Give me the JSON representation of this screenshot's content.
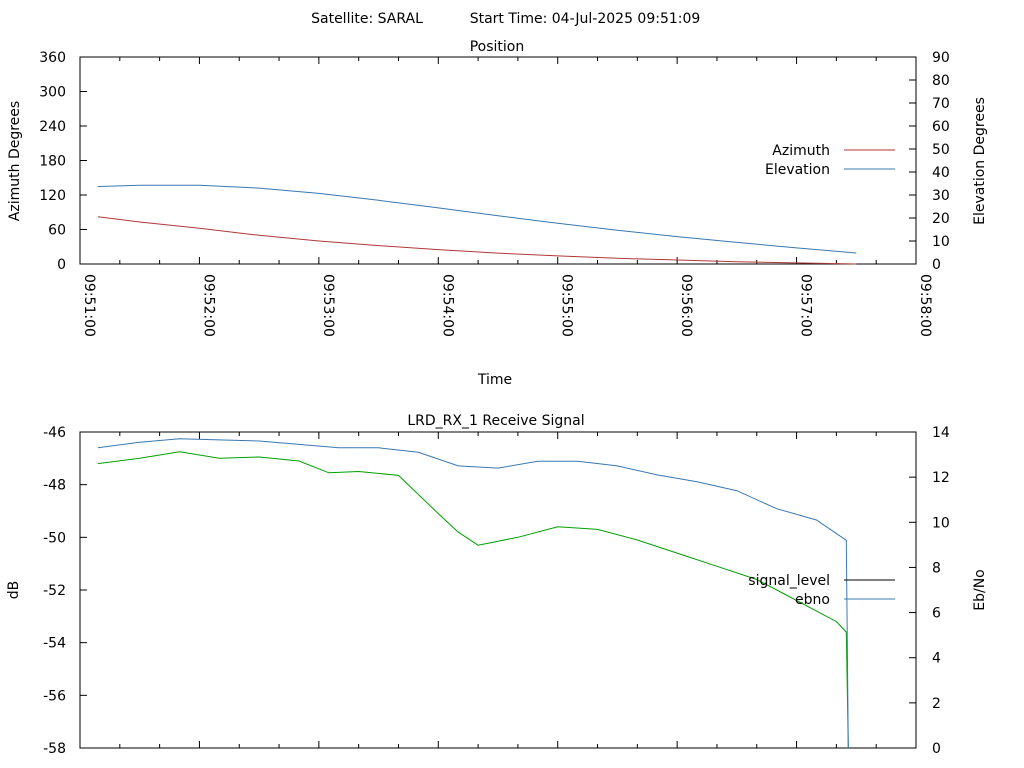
{
  "header": {
    "satellite_text": "Satellite: SARAL",
    "start_time_text": "Start Time: 04-Jul-2025 09:51:09"
  },
  "chart_data": [
    {
      "type": "line",
      "title": "Position",
      "xlabel": "Time",
      "ylabel_left": "Azimuth Degrees",
      "ylabel_right": "Elevation Degrees",
      "x_ticks": [
        "09:51:00",
        "09:52:00",
        "09:53:00",
        "09:54:00",
        "09:55:00",
        "09:56:00",
        "09:57:00",
        "09:58:00"
      ],
      "xlim": [
        "09:51:00",
        "09:58:00"
      ],
      "ylim_left": [
        0,
        360
      ],
      "ylim_right": [
        0,
        90
      ],
      "y_ticks_left": [
        0,
        60,
        120,
        180,
        240,
        300,
        360
      ],
      "y_ticks_right": [
        0,
        10,
        20,
        30,
        40,
        50,
        60,
        70,
        80,
        90
      ],
      "legend": "right",
      "series": [
        {
          "name": "Azimuth",
          "axis": "left",
          "color": "#b03838",
          "x": [
            "09:51:09",
            "09:51:30",
            "09:52:00",
            "09:52:30",
            "09:53:00",
            "09:53:30",
            "09:54:00",
            "09:54:30",
            "09:55:00",
            "09:55:30",
            "09:56:00",
            "09:56:30",
            "09:57:00",
            "09:57:30"
          ],
          "y": [
            82,
            73,
            62,
            50,
            40,
            32,
            25,
            19,
            14,
            10,
            7,
            4,
            2,
            0
          ]
        },
        {
          "name": "Elevation",
          "axis": "right",
          "color": "#3a78b0",
          "x": [
            "09:51:09",
            "09:51:30",
            "09:52:00",
            "09:52:30",
            "09:53:00",
            "09:53:30",
            "09:54:00",
            "09:54:30",
            "09:55:00",
            "09:55:30",
            "09:56:00",
            "09:56:30",
            "09:57:00",
            "09:57:30"
          ],
          "y": [
            33.7,
            34.2,
            34.2,
            33.0,
            30.7,
            27.7,
            24.4,
            21.0,
            17.7,
            14.7,
            11.9,
            9.4,
            7.0,
            4.8
          ]
        }
      ]
    },
    {
      "type": "line",
      "title": "LRD_RX_1 Receive Signal",
      "ylabel_left": "dB",
      "ylabel_right": "Eb/No",
      "xlim": [
        "09:51:00",
        "09:58:00"
      ],
      "ylim_left": [
        -58,
        -46
      ],
      "ylim_right": [
        0,
        14
      ],
      "y_ticks_left": [
        -58,
        -56,
        -54,
        -52,
        -50,
        -48,
        -46
      ],
      "y_ticks_right": [
        0,
        2,
        4,
        6,
        8,
        10,
        12,
        14
      ],
      "legend": "right",
      "series": [
        {
          "name": "signal_level",
          "axis": "left",
          "color": "#000000",
          "x": [],
          "y": []
        },
        {
          "name": "",
          "axis": "left",
          "color": "#00a000",
          "x": [
            "09:51:09",
            "09:51:30",
            "09:51:50",
            "09:52:10",
            "09:52:30",
            "09:52:50",
            "09:53:05",
            "09:53:20",
            "09:53:40",
            "09:54:00",
            "09:54:10",
            "09:54:20",
            "09:54:40",
            "09:55:00",
            "09:55:20",
            "09:55:40",
            "09:56:00",
            "09:56:20",
            "09:56:40",
            "09:57:00",
            "09:57:10",
            "09:57:20",
            "09:57:25",
            "09:57:26"
          ],
          "y": [
            -47.2,
            -47.0,
            -46.75,
            -47.0,
            -46.95,
            -47.1,
            -47.55,
            -47.5,
            -47.65,
            -49.1,
            -49.8,
            -50.3,
            -50.0,
            -49.6,
            -49.7,
            -50.1,
            -50.6,
            -51.1,
            -51.6,
            -52.4,
            -52.8,
            -53.2,
            -53.6,
            -58
          ]
        },
        {
          "name": "ebno",
          "axis": "right",
          "color": "#3a78b0",
          "x": [
            "09:51:09",
            "09:51:30",
            "09:51:50",
            "09:52:10",
            "09:52:30",
            "09:52:50",
            "09:53:10",
            "09:53:30",
            "09:53:50",
            "09:54:10",
            "09:54:30",
            "09:54:50",
            "09:55:10",
            "09:55:30",
            "09:55:50",
            "09:56:10",
            "09:56:30",
            "09:56:50",
            "09:57:10",
            "09:57:25",
            "09:57:26"
          ],
          "y": [
            13.3,
            13.55,
            13.7,
            13.65,
            13.6,
            13.45,
            13.3,
            13.3,
            13.1,
            12.5,
            12.4,
            12.7,
            12.7,
            12.5,
            12.1,
            11.8,
            11.4,
            10.6,
            10.1,
            9.2,
            0
          ]
        }
      ]
    }
  ]
}
